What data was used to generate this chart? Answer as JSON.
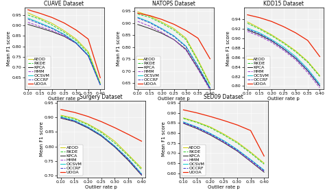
{
  "x": [
    0.1,
    0.15,
    0.2,
    0.25,
    0.3,
    0.35,
    0.4
  ],
  "datasets": {
    "CUAVE": {
      "title": "CUAVE Dataset",
      "ylim": [
        0.595,
        0.985
      ],
      "yticks": [
        0.65,
        0.7,
        0.75,
        0.8,
        0.85,
        0.9,
        0.95
      ],
      "series": {
        "AEOD": [
          0.96,
          0.935,
          0.91,
          0.875,
          0.835,
          0.775,
          0.625
        ],
        "RKDE": [
          0.95,
          0.93,
          0.902,
          0.868,
          0.828,
          0.768,
          0.62
        ],
        "KPCA": [
          0.905,
          0.888,
          0.87,
          0.848,
          0.815,
          0.755,
          0.618
        ],
        "HMM": [
          0.915,
          0.895,
          0.875,
          0.85,
          0.815,
          0.755,
          0.615
        ],
        "OCSVM": [
          0.935,
          0.912,
          0.888,
          0.858,
          0.818,
          0.758,
          0.618
        ],
        "OCCRF": [
          0.93,
          0.908,
          0.885,
          0.855,
          0.815,
          0.755,
          0.615
        ],
        "UOOA": [
          0.975,
          0.958,
          0.938,
          0.912,
          0.878,
          0.835,
          0.65
        ]
      }
    },
    "NATOPS": {
      "title": "NATOPS Dataset",
      "ylim": [
        0.625,
        0.965
      ],
      "yticks": [
        0.65,
        0.7,
        0.75,
        0.8,
        0.85,
        0.9,
        0.95
      ],
      "series": {
        "AEOD": [
          0.948,
          0.93,
          0.905,
          0.878,
          0.838,
          0.748,
          0.648
        ],
        "RKDE": [
          0.938,
          0.925,
          0.9,
          0.872,
          0.832,
          0.742,
          0.642
        ],
        "KPCA": [
          0.895,
          0.878,
          0.858,
          0.832,
          0.792,
          0.712,
          0.628
        ],
        "HMM": [
          0.908,
          0.888,
          0.862,
          0.832,
          0.788,
          0.708,
          0.622
        ],
        "OCSVM": [
          0.925,
          0.905,
          0.878,
          0.848,
          0.805,
          0.722,
          0.632
        ],
        "OCCRF": [
          0.922,
          0.902,
          0.875,
          0.845,
          0.802,
          0.72,
          0.63
        ],
        "UOOA": [
          0.942,
          0.932,
          0.916,
          0.896,
          0.87,
          0.838,
          0.752
        ]
      }
    },
    "KDD15": {
      "title": "KDD15 Dataset",
      "ylim": [
        0.793,
        0.965
      ],
      "yticks": [
        0.8,
        0.82,
        0.84,
        0.86,
        0.88,
        0.9,
        0.92,
        0.94
      ],
      "series": {
        "AEOD": [
          0.935,
          0.922,
          0.908,
          0.892,
          0.874,
          0.852,
          0.822
        ],
        "RKDE": [
          0.932,
          0.92,
          0.906,
          0.89,
          0.872,
          0.85,
          0.82
        ],
        "KPCA": [
          0.918,
          0.908,
          0.895,
          0.878,
          0.858,
          0.832,
          0.8
        ],
        "HMM": [
          0.915,
          0.905,
          0.892,
          0.875,
          0.855,
          0.828,
          0.796
        ],
        "OCSVM": [
          0.922,
          0.912,
          0.898,
          0.882,
          0.862,
          0.836,
          0.804
        ],
        "OCCRF": [
          0.92,
          0.91,
          0.896,
          0.879,
          0.859,
          0.833,
          0.801
        ],
        "UOOA": [
          0.95,
          0.944,
          0.936,
          0.925,
          0.912,
          0.896,
          0.862
        ]
      }
    },
    "Surgery": {
      "title": "Surgery Dataset",
      "ylim": [
        0.692,
        0.958
      ],
      "yticks": [
        0.7,
        0.75,
        0.8,
        0.85,
        0.9,
        0.95
      ],
      "series": {
        "AEOD": [
          0.908,
          0.898,
          0.878,
          0.852,
          0.818,
          0.772,
          0.725
        ],
        "RKDE": [
          0.905,
          0.895,
          0.875,
          0.848,
          0.812,
          0.768,
          0.72
        ],
        "KPCA": [
          0.898,
          0.886,
          0.864,
          0.836,
          0.798,
          0.752,
          0.7
        ],
        "HMM": [
          0.9,
          0.888,
          0.866,
          0.838,
          0.8,
          0.755,
          0.702
        ],
        "OCSVM": [
          0.902,
          0.89,
          0.868,
          0.84,
          0.802,
          0.758,
          0.705
        ],
        "OCCRF": [
          0.9,
          0.888,
          0.866,
          0.838,
          0.8,
          0.756,
          0.703
        ],
        "UOOA": [
          0.928,
          0.918,
          0.904,
          0.886,
          0.865,
          0.842,
          0.818
        ]
      }
    },
    "SED09": {
      "title": "SED09 Dataset",
      "ylim": [
        0.578,
        0.96
      ],
      "yticks": [
        0.6,
        0.65,
        0.7,
        0.75,
        0.8,
        0.85,
        0.9,
        0.95
      ],
      "series": {
        "AEOD": [
          0.875,
          0.855,
          0.83,
          0.795,
          0.755,
          0.705,
          0.65
        ],
        "RKDE": [
          0.872,
          0.852,
          0.826,
          0.79,
          0.75,
          0.7,
          0.645
        ],
        "KPCA": [
          0.848,
          0.822,
          0.79,
          0.752,
          0.71,
          0.658,
          0.605
        ],
        "HMM": [
          0.85,
          0.825,
          0.792,
          0.755,
          0.712,
          0.66,
          0.608
        ],
        "OCSVM": [
          0.855,
          0.83,
          0.798,
          0.762,
          0.718,
          0.668,
          0.615
        ],
        "OCCRF": [
          0.852,
          0.828,
          0.795,
          0.758,
          0.715,
          0.665,
          0.612
        ],
        "UOOA": [
          0.915,
          0.9,
          0.882,
          0.862,
          0.84,
          0.812,
          0.685
        ]
      }
    }
  },
  "methods": [
    "AEOD",
    "RKDE",
    "KPCA",
    "HMM",
    "OCSVM",
    "OCCRF",
    "UOOA"
  ],
  "colors": {
    "AEOD": "#cccc00",
    "RKDE": "#22cc22",
    "KPCA": "#222222",
    "HMM": "#9933cc",
    "OCSVM": "#00cccc",
    "OCCRF": "#3333cc",
    "UOOA": "#ee2200"
  },
  "linestyles": {
    "AEOD": "-",
    "RKDE": "--",
    "KPCA": "-",
    "HMM": "--",
    "OCSVM": "-",
    "OCCRF": "--",
    "UOOA": "-"
  },
  "xlabel": "Outlier rate p",
  "ylabel": "Mean F1 score",
  "legend_fontsize": 4.5,
  "tick_fontsize": 4.5,
  "label_fontsize": 5.0,
  "title_fontsize": 5.5,
  "bg_color": "#f0f0f0"
}
